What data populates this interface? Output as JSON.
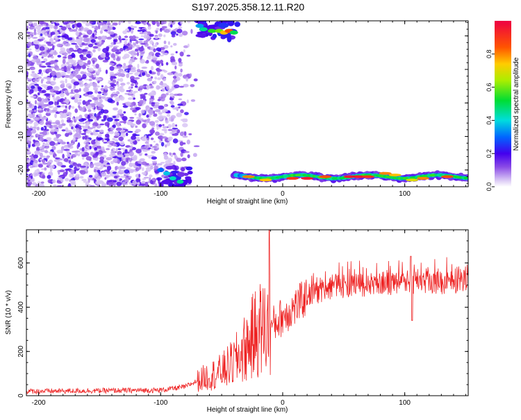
{
  "title": "S197.2025.358.12.11.R20",
  "chart_data": [
    {
      "type": "heatmap",
      "xlabel": "Height of straight line (km)",
      "ylabel": "Frequency (Hz)",
      "xlim": [
        -210,
        152
      ],
      "ylim": [
        -25,
        24.5
      ],
      "xticks": [
        -200,
        -100,
        0,
        100
      ],
      "yticks": [
        -20,
        -10,
        0,
        10,
        20
      ],
      "colorbar": {
        "label": "Normalized spectral amplitude",
        "range": [
          0,
          1
        ],
        "ticks": [
          "0.0",
          "0.2",
          "0.4",
          "0.6",
          "0.8"
        ],
        "tick_values": [
          0,
          0.2,
          0.4,
          0.6,
          0.8
        ]
      },
      "regions": [
        {
          "x": [
            -210,
            -75
          ],
          "y": [
            -25,
            24.5
          ],
          "amplitude": 0.08,
          "description_type": "noise"
        },
        {
          "x": [
            -75,
            -35
          ],
          "y": [
            19,
            24.5
          ],
          "amplitude": 0.6
        },
        {
          "x": [
            -105,
            -75
          ],
          "y": [
            -25,
            -19
          ],
          "amplitude": 0.4
        },
        {
          "x": [
            -40,
            152
          ],
          "y": [
            -24,
            -20
          ],
          "amplitude": 0.9
        }
      ]
    },
    {
      "type": "line",
      "xlabel": "Height of straight line (km)",
      "ylabel": "SNR (10 * v/v)",
      "xlim": [
        -210,
        152
      ],
      "ylim": [
        0,
        750
      ],
      "xticks": [
        -200,
        -100,
        0,
        100
      ],
      "yticks": [
        0,
        200,
        400,
        600
      ],
      "color": "#ee2222",
      "envelope": [
        {
          "x": -210,
          "y": 20
        },
        {
          "x": -100,
          "y": 25
        },
        {
          "x": -80,
          "y": 40
        },
        {
          "x": -65,
          "y": 80
        },
        {
          "x": -50,
          "y": 110
        },
        {
          "x": -40,
          "y": 150
        },
        {
          "x": -30,
          "y": 220
        },
        {
          "x": -20,
          "y": 300
        },
        {
          "x": -10,
          "y": 310
        },
        {
          "x": 0,
          "y": 360
        },
        {
          "x": 10,
          "y": 400
        },
        {
          "x": 20,
          "y": 450
        },
        {
          "x": 30,
          "y": 470
        },
        {
          "x": 40,
          "y": 490
        },
        {
          "x": 60,
          "y": 500
        },
        {
          "x": 80,
          "y": 505
        },
        {
          "x": 100,
          "y": 510
        },
        {
          "x": 120,
          "y": 510
        },
        {
          "x": 152,
          "y": 515
        }
      ],
      "spikes": [
        {
          "x": -11,
          "y": 750
        },
        {
          "x": 106,
          "y": 340
        },
        {
          "x": 105,
          "y": 630
        }
      ]
    }
  ]
}
